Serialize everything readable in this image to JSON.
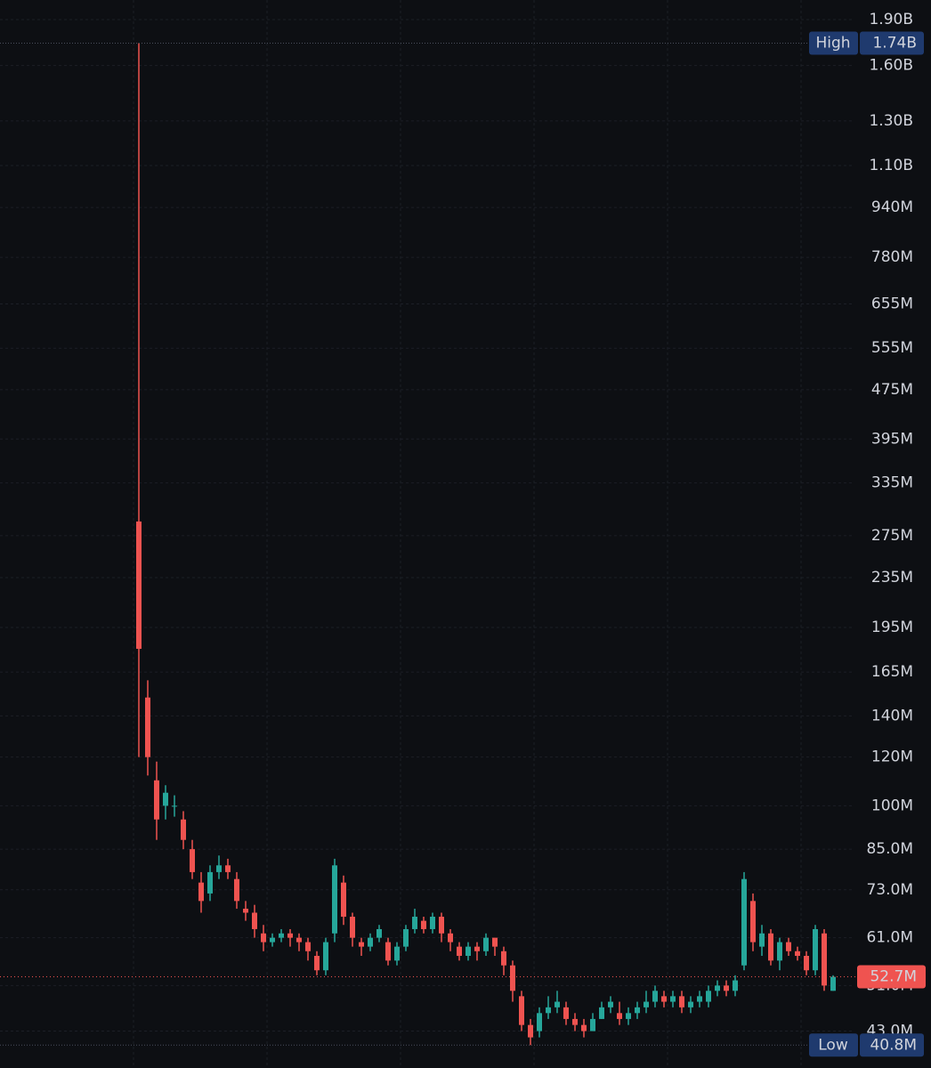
{
  "chart_data": {
    "type": "candlestick",
    "log_scale": true,
    "grid": true,
    "up_color": "#26a69a",
    "down_color": "#ef5350",
    "ylim": [
      37450000.0,
      2045000000.0
    ],
    "yticks": [
      {
        "value": 1900000000.0,
        "label": "1.90B"
      },
      {
        "value": 1600000000.0,
        "label": "1.60B"
      },
      {
        "value": 1300000000.0,
        "label": "1.30B"
      },
      {
        "value": 1100000000.0,
        "label": "1.10B"
      },
      {
        "value": 940000000.0,
        "label": "940M"
      },
      {
        "value": 780000000.0,
        "label": "780M"
      },
      {
        "value": 655000000.0,
        "label": "655M"
      },
      {
        "value": 555000000.0,
        "label": "555M"
      },
      {
        "value": 475000000.0,
        "label": "475M"
      },
      {
        "value": 395000000.0,
        "label": "395M"
      },
      {
        "value": 335000000.0,
        "label": "335M"
      },
      {
        "value": 275000000.0,
        "label": "275M"
      },
      {
        "value": 235000000.0,
        "label": "235M"
      },
      {
        "value": 195000000.0,
        "label": "195M"
      },
      {
        "value": 165000000.0,
        "label": "165M"
      },
      {
        "value": 140000000.0,
        "label": "140M"
      },
      {
        "value": 120000000.0,
        "label": "120M"
      },
      {
        "value": 100000000.0,
        "label": "100M"
      },
      {
        "value": 85000000.0,
        "label": "85.0M"
      },
      {
        "value": 73000000.0,
        "label": "73.0M"
      },
      {
        "value": 61000000.0,
        "label": "61.0M"
      },
      {
        "value": 51000000.0,
        "label": "51.0M"
      },
      {
        "value": 43000000.0,
        "label": "43.0M"
      }
    ],
    "open": [
      290000000.0,
      150000000.0,
      110000000.0,
      100000000.0,
      100000000.0,
      95000000.0,
      85000000.0,
      75000000.0,
      72000000.0,
      78000000.0,
      80000000.0,
      76000000.0,
      68000000.0,
      67000000.0,
      62000000.0,
      60000000.0,
      61000000.0,
      62000000.0,
      61000000.0,
      60000000.0,
      57000000.0,
      54000000.0,
      62000000.0,
      75000000.0,
      66000000.0,
      60000000.0,
      59000000.0,
      61000000.0,
      60000000.0,
      56000000.0,
      59000000.0,
      63000000.0,
      65000000.0,
      63000000.0,
      66000000.0,
      62000000.0,
      59000000.0,
      57000000.0,
      59000000.0,
      58000000.0,
      61000000.0,
      58000000.0,
      55000000.0,
      49000000.0,
      44000000.0,
      43000000.0,
      46000000.0,
      47000000.0,
      47000000.0,
      45000000.0,
      44000000.0,
      43000000.0,
      45000000.0,
      47000000.0,
      46000000.0,
      45000000.0,
      46000000.0,
      47000000.0,
      48000000.0,
      49000000.0,
      48000000.0,
      49000000.0,
      47000000.0,
      48000000.0,
      48000000.0,
      50000000.0,
      51000000.0,
      50000000.0,
      55000000.0,
      70000000.0,
      59000000.0,
      62000000.0,
      56000000.0,
      60000000.0,
      58000000.0,
      57000000.0,
      54000000.0,
      62000000.0,
      50000000.0
    ],
    "high": [
      1740000000.0,
      160000000.0,
      118000000.0,
      108000000.0,
      104000000.0,
      98000000.0,
      88000000.0,
      78000000.0,
      80000000.0,
      83000000.0,
      82000000.0,
      78000000.0,
      70000000.0,
      69000000.0,
      64000000.0,
      62000000.0,
      63000000.0,
      63000000.0,
      62000000.0,
      61000000.0,
      58000000.0,
      61000000.0,
      82000000.0,
      77000000.0,
      67000000.0,
      61000000.0,
      62000000.0,
      64000000.0,
      61000000.0,
      60000000.0,
      64000000.0,
      68000000.0,
      66000000.0,
      67000000.0,
      67000000.0,
      63000000.0,
      60000000.0,
      60000000.0,
      60000000.0,
      62000000.0,
      61000000.0,
      59000000.0,
      56000000.0,
      50000000.0,
      45000000.0,
      47000000.0,
      49000000.0,
      50000000.0,
      48000000.0,
      46000000.0,
      45000000.0,
      46000000.0,
      48000000.0,
      49000000.0,
      48000000.0,
      47000000.0,
      48000000.0,
      50000000.0,
      51000000.0,
      50000000.0,
      50000000.0,
      50000000.0,
      49000000.0,
      50000000.0,
      51000000.0,
      52000000.0,
      52000000.0,
      53000000.0,
      78000000.0,
      72000000.0,
      64000000.0,
      63000000.0,
      61000000.0,
      61000000.0,
      59000000.0,
      58000000.0,
      64000000.0,
      63000000.0,
      53000000.0
    ],
    "low": [
      120000000.0,
      112000000.0,
      88000000.0,
      95000000.0,
      96000000.0,
      85000000.0,
      76000000.0,
      67000000.0,
      70000000.0,
      76000000.0,
      76000000.0,
      68000000.0,
      65000000.0,
      61000000.0,
      58000000.0,
      59000000.0,
      60000000.0,
      59000000.0,
      58000000.0,
      56000000.0,
      53000000.0,
      53000000.0,
      60000000.0,
      64000000.0,
      59000000.0,
      57000000.0,
      58000000.0,
      60000000.0,
      55000000.0,
      55000000.0,
      58000000.0,
      62000000.0,
      62000000.0,
      62000000.0,
      60000000.0,
      58000000.0,
      56000000.0,
      56000000.0,
      56000000.0,
      57000000.0,
      57000000.0,
      53000000.0,
      48000000.0,
      43000000.0,
      40800000.0,
      42000000.0,
      45000000.0,
      46000000.0,
      44000000.0,
      43000000.0,
      42000000.0,
      43000000.0,
      45000000.0,
      46000000.0,
      44000000.0,
      44000000.0,
      45000000.0,
      46000000.0,
      47000000.0,
      47000000.0,
      47000000.0,
      46000000.0,
      46000000.0,
      47000000.0,
      47000000.0,
      49000000.0,
      49000000.0,
      49000000.0,
      54000000.0,
      58000000.0,
      57000000.0,
      55000000.0,
      54000000.0,
      57000000.0,
      56000000.0,
      53000000.0,
      53000000.0,
      50000000.0,
      50000000.0
    ],
    "close": [
      180000000.0,
      120000000.0,
      95000000.0,
      105000000.0,
      100000000.0,
      88000000.0,
      78000000.0,
      70000000.0,
      78000000.0,
      80000000.0,
      78000000.0,
      70000000.0,
      67000000.0,
      63000000.0,
      60000000.0,
      61000000.0,
      62000000.0,
      61000000.0,
      60000000.0,
      58000000.0,
      54000000.0,
      60000000.0,
      80000000.0,
      66000000.0,
      61000000.0,
      59000000.0,
      61000000.0,
      63000000.0,
      56000000.0,
      59000000.0,
      63000000.0,
      66000000.0,
      63000000.0,
      66000000.0,
      62000000.0,
      60000000.0,
      57000000.0,
      59000000.0,
      58000000.0,
      61000000.0,
      59000000.0,
      55000000.0,
      50000000.0,
      44000000.0,
      42000000.0,
      46000000.0,
      47000000.0,
      48000000.0,
      45000000.0,
      44000000.0,
      43000000.0,
      45000000.0,
      47000000.0,
      48000000.0,
      45000000.0,
      46000000.0,
      47000000.0,
      48000000.0,
      50000000.0,
      48000000.0,
      49000000.0,
      47000000.0,
      48000000.0,
      49000000.0,
      50000000.0,
      51000000.0,
      50000000.0,
      52000000.0,
      76000000.0,
      60000000.0,
      62000000.0,
      56000000.0,
      60000000.0,
      58000000.0,
      57000000.0,
      54000000.0,
      63000000.0,
      51000000.0,
      52700000.0
    ],
    "high_marker": {
      "label": "High",
      "value": 1740000000.0,
      "value_label": "1.74B"
    },
    "low_marker": {
      "label": "Low",
      "value": 40800000.0,
      "value_label": "40.8M"
    },
    "last_price": {
      "value": 52700000.0,
      "value_label": "52.7M"
    }
  }
}
